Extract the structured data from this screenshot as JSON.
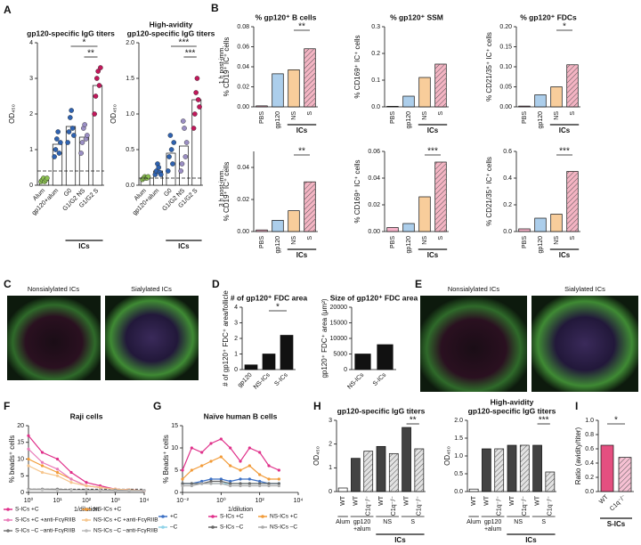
{
  "panel_labels": [
    "A",
    "B",
    "C",
    "D",
    "E",
    "F",
    "G",
    "H",
    "I"
  ],
  "row_labels": [
    "1 h post-imm.",
    "3 h post-imm."
  ],
  "images": {
    "C": [
      "Nonsialylated ICs",
      "Sialylated ICs"
    ],
    "E": [
      "Nonsialylated ICs",
      "Sialylated ICs"
    ]
  },
  "chart_data": [
    {
      "type": "bar",
      "title": [
        "gp120-specific IgG titers"
      ],
      "ylabel": "OD₄₅₀",
      "categories": [
        "Alum",
        "gp120+alum",
        "G0",
        "G1/G2 NS",
        "G1/G2 S"
      ],
      "values": [
        0.15,
        1.15,
        1.65,
        1.35,
        2.8
      ],
      "colors": [
        "#8cc152",
        "#2f62b0",
        "#2f62b0",
        "#9b8fc4",
        "#c2185b"
      ],
      "bar_color": "#ffffff",
      "points": [
        [
          0.1,
          0.15,
          0.2,
          0.1,
          0.15,
          0.2
        ],
        [
          0.8,
          1.0,
          1.3,
          1.5,
          0.9,
          1.2
        ],
        [
          1.2,
          1.5,
          1.9,
          2.1,
          1.6,
          1.4
        ],
        [
          0.9,
          1.2,
          1.6,
          1.7,
          1.3,
          1.4
        ],
        [
          2.0,
          2.5,
          3.0,
          3.2,
          2.8,
          3.3
        ]
      ],
      "ylim": [
        0,
        4
      ],
      "yticks": [
        0,
        1,
        2,
        3,
        4
      ],
      "ref_line": 0.4,
      "group_label": "ICs",
      "significance": [
        "*",
        "**"
      ]
    },
    {
      "type": "bar",
      "title": [
        "High-avidity",
        "gp120-specific IgG titers"
      ],
      "ylabel": "OD₄₅₀",
      "categories": [
        "Alum",
        "gp120+alum",
        "G0",
        "G1/G2 NS",
        "G1/G2 S"
      ],
      "values": [
        0.1,
        0.2,
        0.45,
        0.55,
        1.2
      ],
      "colors": [
        "#8cc152",
        "#2f62b0",
        "#2f62b0",
        "#9b8fc4",
        "#c2185b"
      ],
      "bar_color": "#ffffff",
      "points": [
        [
          0.08,
          0.1,
          0.12,
          0.1,
          0.1,
          0.12
        ],
        [
          0.15,
          0.2,
          0.3,
          0.25,
          0.18,
          0.15
        ],
        [
          0.2,
          0.4,
          0.7,
          0.5,
          0.3,
          0.6
        ],
        [
          0.2,
          0.3,
          0.9,
          0.8,
          0.4,
          0.6
        ],
        [
          0.8,
          1.0,
          1.3,
          1.5,
          1.2,
          1.1
        ]
      ],
      "ylim": [
        0,
        2
      ],
      "yticks": [
        {
          "value": 0,
          "label": "0.0"
        },
        {
          "value": 0.5,
          "label": "0.5"
        },
        {
          "value": 1,
          "label": "1.0"
        },
        {
          "value": 1.5,
          "label": "1.5"
        },
        {
          "value": 2,
          "label": "2.0"
        }
      ],
      "ref_line": 0.1,
      "group_label": "ICs",
      "significance": [
        "***",
        "***"
      ]
    },
    {
      "type": "bar",
      "title": [
        "% gp120⁺ B cells"
      ],
      "ylabel": "% CD19⁺ IC⁺ cells",
      "categories": [
        "PBS",
        "gp120",
        "NS",
        "S"
      ],
      "values": [
        0.001,
        0.033,
        0.037,
        0.058
      ],
      "colors": [
        "#f4a6c0",
        "#9ec5e8",
        "#f7c48a",
        "#f2a7b8"
      ],
      "hatched": [
        false,
        false,
        false,
        true
      ],
      "ylim": [
        0,
        0.08
      ],
      "yticks": [
        {
          "value": 0,
          "label": "0.00"
        },
        {
          "value": 0.02,
          "label": "0.02"
        },
        {
          "value": 0.04,
          "label": "0.04"
        },
        {
          "value": 0.06,
          "label": "0.06"
        },
        {
          "value": 0.08,
          "label": "0.08"
        }
      ],
      "group_label": "ICs",
      "significance": [
        "**"
      ]
    },
    {
      "type": "bar",
      "title": [
        "% gp120⁺ SSM"
      ],
      "ylabel": "% CD169⁺ IC⁺ cells",
      "categories": [
        "PBS",
        "gp120",
        "NS",
        "S"
      ],
      "values": [
        0.002,
        0.04,
        0.11,
        0.16
      ],
      "colors": [
        "#f4a6c0",
        "#9ec5e8",
        "#f7c48a",
        "#f2a7b8"
      ],
      "hatched": [
        false,
        false,
        false,
        true
      ],
      "ylim": [
        0,
        0.3
      ],
      "yticks": [
        {
          "value": 0,
          "label": "0.0"
        },
        0.1,
        0.2,
        0.3
      ],
      "group_label": "ICs",
      "significance": []
    },
    {
      "type": "bar",
      "title": [
        "% gp120⁺ FDCs"
      ],
      "ylabel": "% CD21/35⁺ IC⁺ cells",
      "categories": [
        "PBS",
        "gp120",
        "NS",
        "S"
      ],
      "values": [
        0.002,
        0.03,
        0.05,
        0.105
      ],
      "colors": [
        "#f4a6c0",
        "#9ec5e8",
        "#f7c48a",
        "#f2a7b8"
      ],
      "hatched": [
        false,
        false,
        false,
        true
      ],
      "ylim": [
        0,
        0.2
      ],
      "yticks": [
        {
          "value": 0,
          "label": "0.00"
        },
        {
          "value": 0.05,
          "label": "0.05"
        },
        {
          "value": 0.1,
          "label": "0.10"
        },
        {
          "value": 0.15,
          "label": "0.15"
        },
        {
          "value": 0.2,
          "label": "0.20"
        }
      ],
      "group_label": "ICs",
      "significance": [
        "*"
      ]
    },
    {
      "type": "bar",
      "title": [],
      "ylabel": "% CD19⁺ IC⁺ cells",
      "categories": [
        "PBS",
        "gp120",
        "NS",
        "S"
      ],
      "values": [
        0.001,
        0.007,
        0.013,
        0.031
      ],
      "colors": [
        "#f4a6c0",
        "#9ec5e8",
        "#f7c48a",
        "#f2a7b8"
      ],
      "hatched": [
        false,
        false,
        false,
        true
      ],
      "ylim": [
        0,
        0.05
      ],
      "yticks": [
        {
          "value": 0,
          "label": "0.00"
        },
        {
          "value": 0.02,
          "label": "0.02"
        },
        {
          "value": 0.04,
          "label": "0.04"
        }
      ],
      "group_label": "ICs",
      "significance": [
        "**"
      ]
    },
    {
      "type": "bar",
      "title": [],
      "ylabel": "% CD169⁺ IC⁺ cells",
      "categories": [
        "PBS",
        "gp120",
        "NS",
        "S"
      ],
      "values": [
        0.003,
        0.006,
        0.026,
        0.052
      ],
      "colors": [
        "#f4a6c0",
        "#9ec5e8",
        "#f7c48a",
        "#f2a7b8"
      ],
      "hatched": [
        false,
        false,
        false,
        true
      ],
      "ylim": [
        0,
        0.06
      ],
      "yticks": [
        {
          "value": 0,
          "label": "0.00"
        },
        {
          "value": 0.02,
          "label": "0.02"
        },
        {
          "value": 0.04,
          "label": "0.04"
        },
        {
          "value": 0.06,
          "label": "0.06"
        }
      ],
      "group_label": "ICs",
      "significance": [
        "***"
      ]
    },
    {
      "type": "bar",
      "title": [],
      "ylabel": "% CD21/35⁺ IC⁺ cells",
      "categories": [
        "PBS",
        "gp120",
        "NS",
        "S"
      ],
      "values": [
        0.02,
        0.1,
        0.13,
        0.45
      ],
      "colors": [
        "#f4a6c0",
        "#9ec5e8",
        "#f7c48a",
        "#f2a7b8"
      ],
      "hatched": [
        false,
        false,
        false,
        true
      ],
      "ylim": [
        0,
        0.6
      ],
      "yticks": [
        {
          "value": 0,
          "label": "0.0"
        },
        0.2,
        0.4,
        0.6
      ],
      "group_label": "ICs",
      "significance": [
        "***"
      ]
    },
    {
      "type": "bar",
      "title": [
        "# of gp120⁺ FDC area"
      ],
      "ylabel": "# of gp120⁺ FDC⁺ area/follicle",
      "categories": [
        "gp120",
        "NS-ICs",
        "S-ICs"
      ],
      "values": [
        0.3,
        1.0,
        2.2
      ],
      "colors": [
        "#111111",
        "#111111",
        "#111111"
      ],
      "bar_color": "#111111",
      "ylim": [
        0,
        4
      ],
      "yticks": [
        0,
        1,
        2,
        3,
        4
      ],
      "significance": [
        "*"
      ]
    },
    {
      "type": "bar",
      "title": [
        "Size of gp120⁺ FDC area"
      ],
      "ylabel": "gp120⁺ FDC⁺ area (μm²)",
      "categories": [
        "NS-ICs",
        "S-ICs"
      ],
      "values": [
        5000,
        8000
      ],
      "colors": [
        "#111111",
        "#111111"
      ],
      "bar_color": "#111111",
      "ylim": [
        0,
        20000
      ],
      "yticks": [
        0,
        5000,
        10000,
        15000,
        20000
      ],
      "significance": []
    },
    {
      "type": "line",
      "title": [
        "Raji cells"
      ],
      "xlabel": "1/dilution",
      "ylabel": "% beads⁺ cells",
      "x": [
        1,
        3,
        10,
        30,
        100,
        300,
        1000,
        3000,
        10000
      ],
      "xlim": [
        1,
        10000
      ],
      "xticks": [
        {
          "value": 1,
          "label": "10⁰"
        },
        {
          "value": 10,
          "label": "10¹"
        },
        {
          "value": 100,
          "label": "10²"
        },
        {
          "value": 1000,
          "label": "10³"
        },
        {
          "value": 10000,
          "label": "10⁴"
        }
      ],
      "ylim": [
        0,
        20
      ],
      "yticks": [
        0,
        5,
        10,
        15,
        20
      ],
      "log_x": true,
      "ref_line": 1,
      "series": [
        {
          "name": "S-ICs +C",
          "color": "#e0308a",
          "values": [
            17,
            12,
            10,
            6,
            3,
            2,
            1,
            0.8,
            0.5
          ]
        },
        {
          "name": "NS-ICs +C",
          "color": "#f29b38",
          "values": [
            10,
            8,
            6,
            4,
            2,
            1.5,
            1,
            0.8,
            0.5
          ]
        },
        {
          "name": "S-ICs +C +anti-FcγRIIB",
          "color": "#e97ab8",
          "values": [
            13,
            9,
            7,
            4,
            2,
            1.5,
            1,
            0.8,
            0.5
          ]
        },
        {
          "name": "NS-ICs +C +anti-FcγRIIB",
          "color": "#f6c58c",
          "values": [
            8,
            6,
            5,
            3,
            2,
            1.5,
            1,
            0.8,
            0.5
          ]
        },
        {
          "name": "S-ICs –C –anti-FcγRIIB",
          "color": "#777777",
          "values": [
            1,
            1,
            1,
            0.8,
            0.8,
            0.7,
            0.7,
            0.6,
            0.6
          ]
        },
        {
          "name": "NS-ICs –C –anti-FcγRIIB",
          "color": "#bbbbbb",
          "values": [
            0.8,
            0.8,
            0.7,
            0.7,
            0.6,
            0.6,
            0.5,
            0.5,
            0.5
          ]
        }
      ]
    },
    {
      "type": "line",
      "title": [
        "Naïve human B cells"
      ],
      "xlabel": "1/dilution",
      "ylabel": "% Beads⁺ cells",
      "x": [
        0.01,
        0.03,
        0.1,
        0.3,
        1,
        3,
        10,
        30,
        100,
        300,
        1000
      ],
      "xlim": [
        0.01,
        10000
      ],
      "xticks": [
        {
          "value": 0.01,
          "label": "10⁻²"
        },
        {
          "value": 1,
          "label": "10⁰"
        },
        {
          "value": 100,
          "label": "10²"
        },
        {
          "value": 10000,
          "label": "10⁴"
        }
      ],
      "ylim": [
        0,
        15
      ],
      "yticks": [
        0,
        5,
        10,
        15
      ],
      "log_x": true,
      "series": [
        {
          "name": "+C",
          "color": "#3b6fc4",
          "values": [
            2,
            2,
            2.5,
            3,
            3,
            2.5,
            3,
            3,
            2.5,
            2,
            2
          ]
        },
        {
          "name": "S-ICs +C",
          "color": "#e0308a",
          "values": [
            5,
            10,
            9,
            11,
            12,
            10,
            7,
            10,
            9,
            6,
            5
          ]
        },
        {
          "name": "NS-ICs +C",
          "color": "#f29b38",
          "values": [
            3,
            5,
            6,
            7,
            8,
            6,
            5,
            6,
            4,
            3,
            3
          ]
        },
        {
          "name": "–C",
          "color": "#8fd3e8",
          "values": [
            2,
            2,
            2,
            2,
            2,
            2,
            2,
            2,
            2,
            2,
            2
          ]
        },
        {
          "name": "S-ICs –C",
          "color": "#666666",
          "values": [
            2,
            2,
            2,
            2.5,
            2.5,
            2,
            2,
            2,
            2,
            2,
            2
          ]
        },
        {
          "name": "NS-ICs –C",
          "color": "#aaaaaa",
          "values": [
            1.5,
            1.5,
            2,
            2,
            2,
            1.5,
            1.5,
            1.5,
            1.5,
            1.5,
            1.5
          ]
        }
      ]
    },
    {
      "type": "bar",
      "title": [
        "gp120-specific IgG titers"
      ],
      "ylabel": "OD₄₅₀",
      "categories": [
        "WT",
        "WT",
        "C1q⁻/⁻",
        "WT",
        "C1q⁻/⁻",
        "WT",
        "C1q⁻/⁻"
      ],
      "values": [
        0.15,
        1.4,
        1.7,
        1.9,
        1.6,
        2.7,
        1.8
      ],
      "colors": [
        "#ffffff",
        "#222222",
        "#dddddd",
        "#222222",
        "#dddddd",
        "#222222",
        "#dddddd"
      ],
      "hatched": [
        false,
        false,
        true,
        false,
        true,
        false,
        true
      ],
      "ylim": [
        0,
        3
      ],
      "yticks": [
        0,
        1,
        2,
        3
      ],
      "groups": [
        [
          "Alum"
        ],
        [
          "gp120",
          "+alum"
        ],
        [
          "NS"
        ],
        [
          "S"
        ]
      ],
      "group_label": "ICs",
      "significance": [
        "**"
      ]
    },
    {
      "type": "bar",
      "title": [
        "High-avidity",
        "gp120-specific IgG titers"
      ],
      "ylabel": "OD₄₅₀",
      "categories": [
        "WT",
        "WT",
        "C1q⁻/⁻",
        "WT",
        "C1q⁻/⁻",
        "WT",
        "C1q⁻/⁻"
      ],
      "values": [
        0.07,
        1.2,
        1.2,
        1.3,
        1.3,
        1.3,
        0.55
      ],
      "colors": [
        "#ffffff",
        "#222222",
        "#dddddd",
        "#222222",
        "#dddddd",
        "#222222",
        "#dddddd"
      ],
      "hatched": [
        false,
        false,
        true,
        false,
        true,
        false,
        true
      ],
      "ylim": [
        0,
        2
      ],
      "yticks": [
        {
          "value": 0,
          "label": "0.0"
        },
        {
          "value": 0.5,
          "label": "0.5"
        },
        {
          "value": 1,
          "label": "1.0"
        },
        {
          "value": 1.5,
          "label": "1.5"
        },
        {
          "value": 2,
          "label": "2.0"
        }
      ],
      "groups": [
        [
          "Alum"
        ],
        [
          "gp120",
          "+alum"
        ],
        [
          "NS"
        ],
        [
          "S"
        ]
      ],
      "group_label": "ICs",
      "significance": [
        "***"
      ]
    },
    {
      "type": "bar",
      "title": [],
      "ylabel": "Ratio (avidity/titer)",
      "categories": [
        "WT",
        "C1q⁻/⁻"
      ],
      "values": [
        0.65,
        0.48
      ],
      "colors": [
        "#e0306a",
        "#f4b6cb"
      ],
      "hatched": [
        false,
        true
      ],
      "ylim": [
        0,
        1
      ],
      "yticks": [
        {
          "value": 0,
          "label": "0.0"
        },
        0.2,
        0.4,
        0.6,
        0.8,
        {
          "value": 1,
          "label": "1.0"
        }
      ],
      "group_label": "S-ICs",
      "significance": [
        "*"
      ]
    }
  ]
}
